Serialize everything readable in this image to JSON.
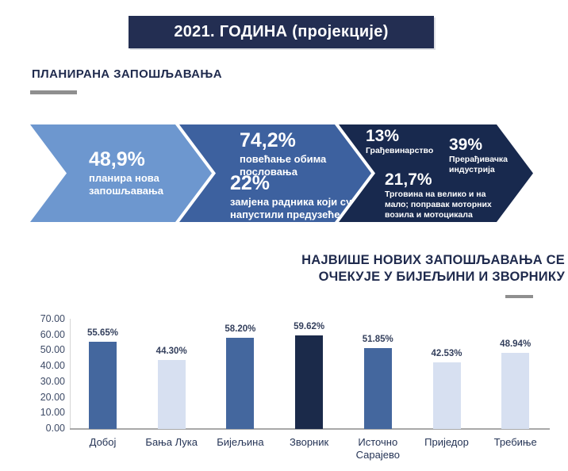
{
  "banner": {
    "title": "2021. ГОДИНА (пројекције)"
  },
  "section": {
    "title": "ПЛАНИРАНА ЗАПОШЉАВАЊА"
  },
  "funnel": {
    "steps": [
      {
        "color": "#6d97cf",
        "stats": [
          {
            "value": "48,9%",
            "label": "планира нова запошљавања"
          }
        ]
      },
      {
        "color": "#3d619f",
        "stats": [
          {
            "value": "74,2%",
            "label": "повећање обима пословања"
          },
          {
            "value": "22%",
            "label": "замјена радника који су напустили предузеће"
          }
        ]
      },
      {
        "color": "#18294e",
        "stats": [
          {
            "value": "13%",
            "label": "Грађевинарство"
          },
          {
            "value": "39%",
            "label": "Прерађивачка индустрија"
          },
          {
            "value": "21,7%",
            "label": "Трговина на велико и на мало; поправак моторних возила и мотоцикала"
          }
        ]
      }
    ]
  },
  "chart_title": {
    "line1": "НАЈВИШЕ НОВИХ ЗАПОШЉАВАЊА СЕ",
    "line2": "ОЧЕКУЈЕ У БИЈЕЉИНИ И ЗВОРНИКУ"
  },
  "chart_data": {
    "type": "bar",
    "title": "НАЈВИШЕ НОВИХ ЗАПОШЉАВАЊА СЕ ОЧЕКУЈЕ У БИЈЕЉИНИ И ЗВОРНИКУ",
    "categories": [
      "Добој",
      "Бања Лука",
      "Бијељина",
      "Зворник",
      "Источно Сарајево",
      "Приједор",
      "Требиње"
    ],
    "values": [
      55.65,
      44.3,
      58.2,
      59.62,
      51.85,
      42.53,
      48.94
    ],
    "value_labels": [
      "55.65%",
      "44.30%",
      "58.20%",
      "59.62%",
      "51.85%",
      "42.53%",
      "48.94%"
    ],
    "bar_colors": [
      "#44679e",
      "#d7e0f1",
      "#44679e",
      "#1b2a4a",
      "#44679e",
      "#d7e0f1",
      "#d7e0f1"
    ],
    "xlabel": "",
    "ylabel": "",
    "ylim": [
      0,
      70
    ],
    "yticks": [
      0,
      10,
      20,
      30,
      40,
      50,
      60,
      70
    ],
    "ytick_labels": [
      "0.00",
      "10.00",
      "20.00",
      "30.00",
      "40.00",
      "50.00",
      "60.00",
      "70.00"
    ],
    "grid": "off",
    "legend": "none"
  },
  "colors": {
    "banner_bg": "#232e52",
    "heading": "#1f2a4d",
    "step1": "#6d97cf",
    "step2": "#3d619f",
    "step3": "#18294e",
    "bar_medium": "#44679e",
    "bar_light": "#d7e0f1",
    "bar_dark": "#1b2a4a",
    "dash_gray": "#8f8f8f"
  }
}
